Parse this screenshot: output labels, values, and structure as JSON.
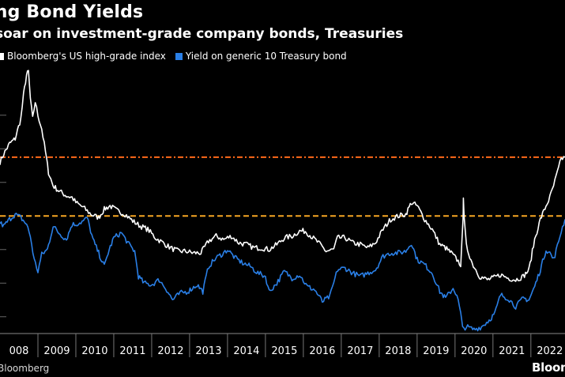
{
  "header": {
    "title": "ing Bond Yields",
    "subtitle": "soar on investment-grade company bonds, Treasuries"
  },
  "footer": {
    "source": "Bloomberg",
    "logo": "Bloom"
  },
  "chart_data": {
    "type": "line",
    "title": "ing Bond Yields",
    "subtitle": "soar on investment-grade company bonds, Treasuries",
    "xlabel": "",
    "ylabel": "",
    "xlim": [
      2008.0,
      2022.9
    ],
    "ylim": [
      0.5,
      8.5
    ],
    "x_ticks": [
      "008",
      "2009",
      "2010",
      "2011",
      "2012",
      "2013",
      "2014",
      "2015",
      "2016",
      "2017",
      "2018",
      "2019",
      "2020",
      "2021",
      "2022"
    ],
    "grid": false,
    "legend_position": "top-left",
    "series": [
      {
        "name": "Bloomberg's US high-grade index",
        "color": "#ffffff",
        "points": [
          [
            2008.0,
            5.6
          ],
          [
            2008.1,
            5.85
          ],
          [
            2008.25,
            6.15
          ],
          [
            2008.4,
            6.3
          ],
          [
            2008.55,
            6.9
          ],
          [
            2008.62,
            7.6
          ],
          [
            2008.7,
            8.2
          ],
          [
            2008.75,
            8.3
          ],
          [
            2008.8,
            7.5
          ],
          [
            2008.86,
            6.9
          ],
          [
            2008.93,
            7.4
          ],
          [
            2009.0,
            7.0
          ],
          [
            2009.1,
            6.6
          ],
          [
            2009.2,
            5.9
          ],
          [
            2009.28,
            5.3
          ],
          [
            2009.4,
            4.9
          ],
          [
            2009.55,
            4.75
          ],
          [
            2009.75,
            4.6
          ],
          [
            2009.9,
            4.55
          ],
          [
            2010.0,
            4.4
          ],
          [
            2010.2,
            4.25
          ],
          [
            2010.4,
            4.05
          ],
          [
            2010.6,
            3.95
          ],
          [
            2010.75,
            4.2
          ],
          [
            2010.9,
            4.3
          ],
          [
            2011.1,
            4.15
          ],
          [
            2011.3,
            4.05
          ],
          [
            2011.5,
            3.85
          ],
          [
            2011.7,
            3.7
          ],
          [
            2011.9,
            3.6
          ],
          [
            2012.1,
            3.35
          ],
          [
            2012.3,
            3.2
          ],
          [
            2012.5,
            3.05
          ],
          [
            2012.7,
            2.95
          ],
          [
            2012.9,
            2.95
          ],
          [
            2013.1,
            2.9
          ],
          [
            2013.3,
            2.9
          ],
          [
            2013.5,
            3.25
          ],
          [
            2013.7,
            3.4
          ],
          [
            2013.9,
            3.3
          ],
          [
            2014.1,
            3.4
          ],
          [
            2014.3,
            3.2
          ],
          [
            2014.5,
            3.15
          ],
          [
            2014.7,
            3.05
          ],
          [
            2014.9,
            3.05
          ],
          [
            2015.1,
            3.0
          ],
          [
            2015.3,
            3.15
          ],
          [
            2015.5,
            3.35
          ],
          [
            2015.7,
            3.4
          ],
          [
            2015.9,
            3.55
          ],
          [
            2016.05,
            3.55
          ],
          [
            2016.2,
            3.4
          ],
          [
            2016.4,
            3.2
          ],
          [
            2016.6,
            2.95
          ],
          [
            2016.8,
            3.0
          ],
          [
            2016.9,
            3.35
          ],
          [
            2017.1,
            3.35
          ],
          [
            2017.3,
            3.2
          ],
          [
            2017.5,
            3.15
          ],
          [
            2017.7,
            3.05
          ],
          [
            2017.9,
            3.2
          ],
          [
            2018.1,
            3.6
          ],
          [
            2018.3,
            3.9
          ],
          [
            2018.5,
            4.0
          ],
          [
            2018.7,
            4.05
          ],
          [
            2018.85,
            4.4
          ],
          [
            2019.0,
            4.3
          ],
          [
            2019.2,
            3.9
          ],
          [
            2019.4,
            3.6
          ],
          [
            2019.6,
            3.15
          ],
          [
            2019.75,
            3.05
          ],
          [
            2019.9,
            2.9
          ],
          [
            2020.05,
            2.7
          ],
          [
            2020.15,
            2.55
          ],
          [
            2020.21,
            3.8
          ],
          [
            2020.22,
            4.6
          ],
          [
            2020.24,
            3.9
          ],
          [
            2020.3,
            3.1
          ],
          [
            2020.45,
            2.6
          ],
          [
            2020.65,
            2.2
          ],
          [
            2020.85,
            2.1
          ],
          [
            2021.0,
            2.15
          ],
          [
            2021.2,
            2.25
          ],
          [
            2021.4,
            2.15
          ],
          [
            2021.6,
            2.1
          ],
          [
            2021.8,
            2.2
          ],
          [
            2021.95,
            2.4
          ],
          [
            2022.1,
            3.3
          ],
          [
            2022.25,
            3.9
          ],
          [
            2022.4,
            4.3
          ],
          [
            2022.5,
            4.55
          ],
          [
            2022.6,
            4.9
          ],
          [
            2022.7,
            5.3
          ],
          [
            2022.8,
            5.7
          ],
          [
            2022.9,
            5.75
          ]
        ]
      },
      {
        "name": "Yield on generic 10 Treasury bond",
        "color": "#2a7fe6",
        "points": [
          [
            2008.0,
            3.8
          ],
          [
            2008.1,
            3.7
          ],
          [
            2008.25,
            3.9
          ],
          [
            2008.4,
            4.05
          ],
          [
            2008.55,
            3.95
          ],
          [
            2008.7,
            3.75
          ],
          [
            2008.8,
            3.4
          ],
          [
            2008.9,
            2.7
          ],
          [
            2009.0,
            2.35
          ],
          [
            2009.1,
            2.85
          ],
          [
            2009.25,
            3.0
          ],
          [
            2009.4,
            3.7
          ],
          [
            2009.55,
            3.5
          ],
          [
            2009.75,
            3.3
          ],
          [
            2009.9,
            3.75
          ],
          [
            2010.0,
            3.75
          ],
          [
            2010.2,
            3.85
          ],
          [
            2010.3,
            3.95
          ],
          [
            2010.45,
            3.3
          ],
          [
            2010.6,
            2.9
          ],
          [
            2010.75,
            2.5
          ],
          [
            2010.85,
            2.9
          ],
          [
            2011.0,
            3.35
          ],
          [
            2011.2,
            3.5
          ],
          [
            2011.4,
            3.15
          ],
          [
            2011.55,
            2.95
          ],
          [
            2011.65,
            2.2
          ],
          [
            2011.8,
            2.0
          ],
          [
            2012.0,
            1.95
          ],
          [
            2012.2,
            2.1
          ],
          [
            2012.4,
            1.8
          ],
          [
            2012.55,
            1.5
          ],
          [
            2012.75,
            1.7
          ],
          [
            2012.95,
            1.75
          ],
          [
            2013.2,
            1.95
          ],
          [
            2013.35,
            1.75
          ],
          [
            2013.5,
            2.5
          ],
          [
            2013.7,
            2.75
          ],
          [
            2013.9,
            2.9
          ],
          [
            2014.0,
            3.0
          ],
          [
            2014.2,
            2.75
          ],
          [
            2014.4,
            2.6
          ],
          [
            2014.6,
            2.5
          ],
          [
            2014.8,
            2.3
          ],
          [
            2015.0,
            2.2
          ],
          [
            2015.1,
            1.75
          ],
          [
            2015.3,
            2.0
          ],
          [
            2015.5,
            2.35
          ],
          [
            2015.7,
            2.15
          ],
          [
            2015.9,
            2.25
          ],
          [
            2016.1,
            1.9
          ],
          [
            2016.3,
            1.8
          ],
          [
            2016.5,
            1.45
          ],
          [
            2016.7,
            1.6
          ],
          [
            2016.9,
            2.4
          ],
          [
            2017.1,
            2.45
          ],
          [
            2017.3,
            2.3
          ],
          [
            2017.5,
            2.2
          ],
          [
            2017.7,
            2.3
          ],
          [
            2017.9,
            2.4
          ],
          [
            2018.1,
            2.8
          ],
          [
            2018.3,
            2.9
          ],
          [
            2018.5,
            2.9
          ],
          [
            2018.7,
            2.95
          ],
          [
            2018.85,
            3.2
          ],
          [
            2019.0,
            2.7
          ],
          [
            2019.2,
            2.55
          ],
          [
            2019.4,
            2.3
          ],
          [
            2019.6,
            1.75
          ],
          [
            2019.75,
            1.55
          ],
          [
            2019.95,
            1.85
          ],
          [
            2020.05,
            1.65
          ],
          [
            2020.15,
            1.1
          ],
          [
            2020.2,
            0.65
          ],
          [
            2020.3,
            0.7
          ],
          [
            2020.5,
            0.62
          ],
          [
            2020.7,
            0.7
          ],
          [
            2020.9,
            0.9
          ],
          [
            2021.05,
            1.1
          ],
          [
            2021.2,
            1.65
          ],
          [
            2021.4,
            1.55
          ],
          [
            2021.6,
            1.3
          ],
          [
            2021.8,
            1.55
          ],
          [
            2021.95,
            1.5
          ],
          [
            2022.1,
            1.9
          ],
          [
            2022.25,
            2.4
          ],
          [
            2022.4,
            3.0
          ],
          [
            2022.5,
            2.9
          ],
          [
            2022.6,
            2.7
          ],
          [
            2022.7,
            3.1
          ],
          [
            2022.8,
            3.55
          ],
          [
            2022.9,
            3.9
          ]
        ]
      }
    ],
    "reference_lines": [
      {
        "y": 5.75,
        "color": "#ff6a1a",
        "style": "dash-dot"
      },
      {
        "y": 4.0,
        "color": "#f5a623",
        "style": "dashed"
      }
    ],
    "y_gridlines": [
      1.0,
      2.0,
      3.0,
      4.0,
      5.0,
      6.0,
      7.0
    ]
  }
}
